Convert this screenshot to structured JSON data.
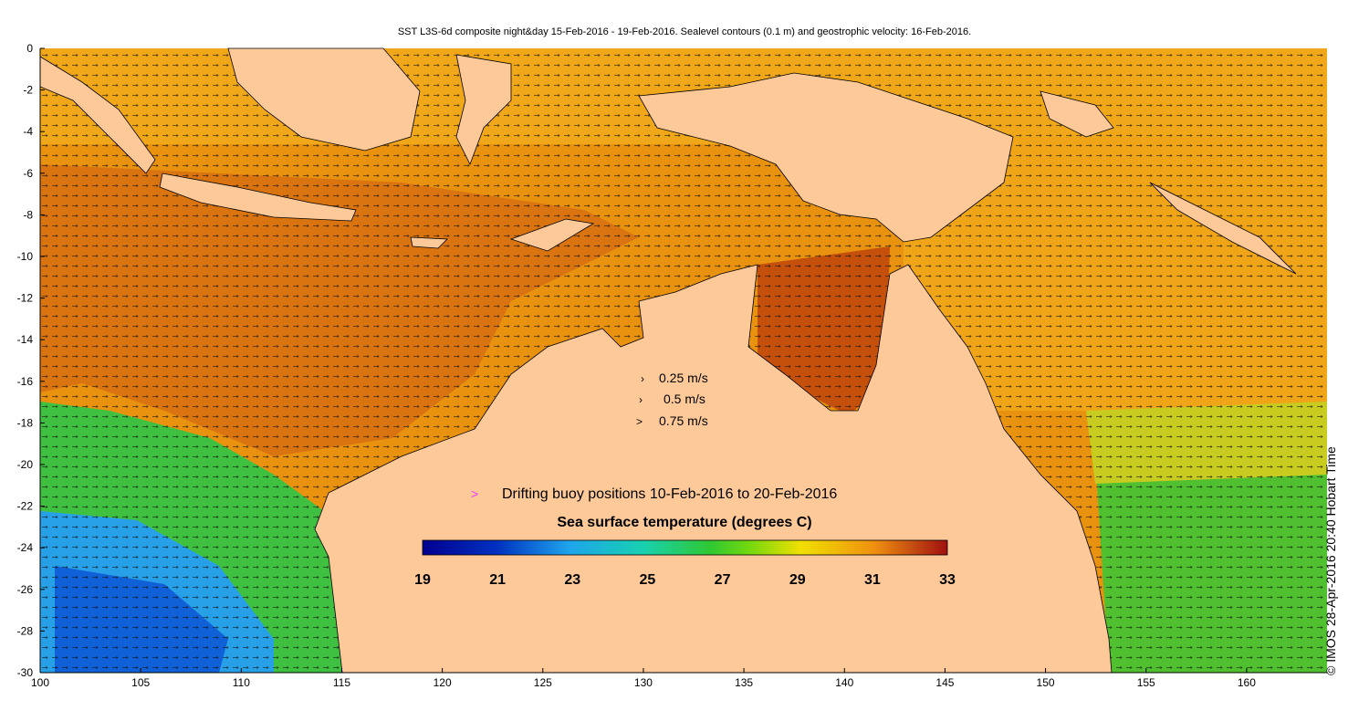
{
  "title": "SST L3S-6d composite night&day 15-Feb-2016 - 19-Feb-2016. Sealevel contours (0.1 m) and geostrophic velocity: 16-Feb-2016.",
  "axes": {
    "y_ticks": [
      "0",
      "-2",
      "-4",
      "-6",
      "-8",
      "-10",
      "-12",
      "-14",
      "-16",
      "-18",
      "-20",
      "-22",
      "-24",
      "-26",
      "-28",
      "-30"
    ],
    "x_ticks": [
      "100",
      "105",
      "110",
      "115",
      "120",
      "125",
      "130",
      "135",
      "140",
      "145",
      "150",
      "155",
      "160"
    ],
    "lon_range": [
      100,
      164
    ],
    "lat_range": [
      -30,
      0
    ]
  },
  "velocity_legend": [
    {
      "arrow": "›",
      "label": "0.25 m/s"
    },
    {
      "arrow": "›",
      "label": "0.5 m/s"
    },
    {
      "arrow": ">",
      "label": "0.75 m/s"
    }
  ],
  "buoy_legend": {
    "marker": ">",
    "label": "Drifting buoy positions 10-Feb-2016 to 20-Feb-2016",
    "color": "#ff33ff"
  },
  "colorbar": {
    "title": "Sea surface temperature (degrees C)",
    "tick_labels": [
      "19",
      "21",
      "23",
      "25",
      "27",
      "29",
      "31",
      "33"
    ],
    "range": [
      19,
      33
    ]
  },
  "credit": "© IMOS 28-Apr-2016 20:40 Hobart Time",
  "colors": {
    "land": "#fdc999",
    "ocean_warm": "#e8900e",
    "ocean_hot": "#c8560a",
    "ocean_cool": "#2fb84a",
    "ocean_cold": "#1f9fe0"
  }
}
